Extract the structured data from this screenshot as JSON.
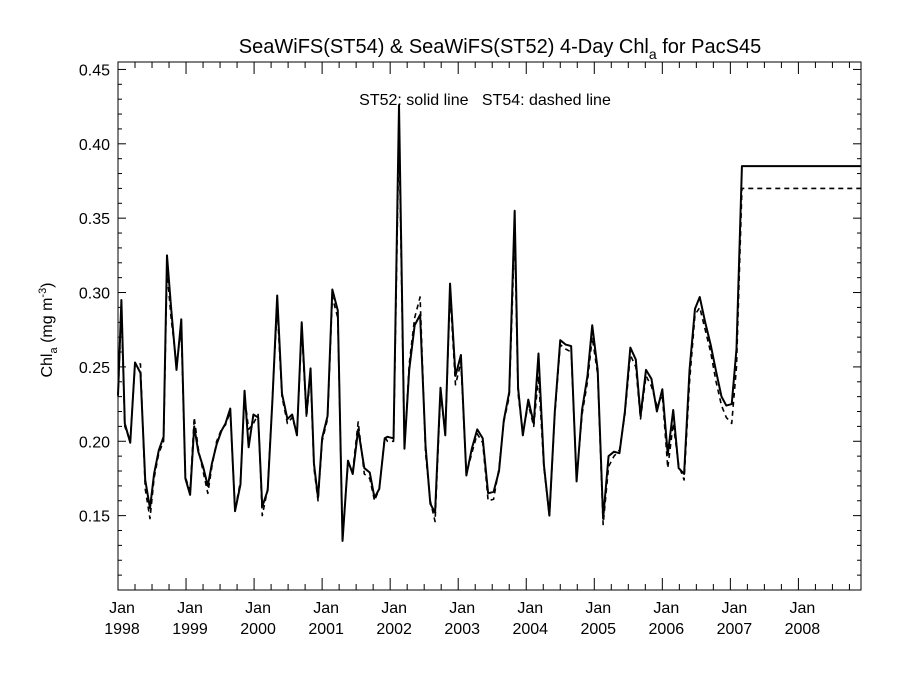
{
  "chart_data": {
    "type": "line",
    "title_main": "SeaWiFS(ST54) & SeaWiFS(ST52) 4-Day Chl",
    "title_sub": "a",
    "title_tail": " for PacS45",
    "annotation": "ST52: solid line   ST54: dashed line",
    "ylabel_main": "Chl",
    "ylabel_sub": "a",
    "ylabel_tail": " (mg m",
    "ylabel_sup": "-3",
    "ylabel_close": ")",
    "ylim": [
      0.1,
      0.455
    ],
    "xlim": [
      1998.0,
      2008.92
    ],
    "yticks": [
      0.15,
      0.2,
      0.25,
      0.3,
      0.35,
      0.4,
      0.45
    ],
    "ytick_labels": [
      "0.15",
      "0.20",
      "0.25",
      "0.30",
      "0.35",
      "0.40",
      "0.45"
    ],
    "xticks": [
      1998,
      1999,
      2000,
      2001,
      2002,
      2003,
      2004,
      2005,
      2006,
      2007,
      2008
    ],
    "xtick_month_label": "Jan",
    "xtick_year_labels": [
      "1998",
      "1999",
      "2000",
      "2001",
      "2002",
      "2003",
      "2004",
      "2005",
      "2006",
      "2007",
      "2008"
    ],
    "grid": false,
    "series": [
      {
        "name": "ST52",
        "style": "solid",
        "x": [
          1998.0,
          1998.05,
          1998.1,
          1998.18,
          1998.25,
          1998.33,
          1998.4,
          1998.47,
          1998.53,
          1998.6,
          1998.67,
          1998.72,
          1998.78,
          1998.86,
          1998.93,
          1998.99,
          1999.06,
          1999.12,
          1999.18,
          1999.25,
          1999.32,
          1999.38,
          1999.45,
          1999.52,
          1999.58,
          1999.65,
          1999.72,
          1999.8,
          1999.86,
          1999.92,
          1999.99,
          2000.06,
          2000.12,
          2000.2,
          2000.27,
          2000.34,
          2000.41,
          2000.49,
          2000.56,
          2000.63,
          2000.7,
          2000.77,
          2000.83,
          2000.88,
          2000.94,
          2001.0,
          2001.08,
          2001.15,
          2001.23,
          2001.3,
          2001.38,
          2001.45,
          2001.53,
          2001.62,
          2001.7,
          2001.77,
          2001.84,
          2001.92,
          2001.96,
          2002.05,
          2002.13,
          2002.21,
          2002.28,
          2002.36,
          2002.44,
          2002.52,
          2002.59,
          2002.66,
          2002.74,
          2002.81,
          2002.88,
          2002.96,
          2003.04,
          2003.12,
          2003.2,
          2003.28,
          2003.36,
          2003.44,
          2003.52,
          2003.6,
          2003.67,
          2003.75,
          2003.83,
          2003.88,
          2003.95,
          2004.03,
          2004.11,
          2004.18,
          2004.26,
          2004.34,
          2004.42,
          2004.5,
          2004.58,
          2004.66,
          2004.74,
          2004.82,
          2004.9,
          2004.97,
          2005.05,
          2005.13,
          2005.21,
          2005.29,
          2005.37,
          2005.45,
          2005.53,
          2005.61,
          2005.68,
          2005.76,
          2005.84,
          2005.92,
          2006.0,
          2006.08,
          2006.16,
          2006.24,
          2006.32,
          2006.4,
          2006.48,
          2006.55,
          2006.63,
          2006.71,
          2006.79,
          2006.87,
          2006.94,
          2007.02,
          2007.09,
          2007.17,
          2007.25,
          2007.33,
          2007.4,
          2007.48,
          2007.56,
          2007.64,
          2007.71,
          2007.79,
          2007.87,
          2007.95,
          2008.03,
          2008.1,
          2008.3,
          2008.5,
          2008.7,
          2008.92
        ],
        "y": [
          0.231,
          0.295,
          0.212,
          0.199,
          0.253,
          0.246,
          0.174,
          0.155,
          0.178,
          0.194,
          0.203,
          0.325,
          0.29,
          0.248,
          0.282,
          0.175,
          0.164,
          0.21,
          0.193,
          0.183,
          0.17,
          0.185,
          0.198,
          0.207,
          0.212,
          0.222,
          0.153,
          0.171,
          0.234,
          0.196,
          0.218,
          0.216,
          0.156,
          0.167,
          0.228,
          0.298,
          0.232,
          0.215,
          0.218,
          0.204,
          0.28,
          0.218,
          0.249,
          0.185,
          0.162,
          0.202,
          0.217,
          0.302,
          0.288,
          0.133,
          0.187,
          0.178,
          0.208,
          0.182,
          0.179,
          0.162,
          0.168,
          0.202,
          0.203,
          0.202,
          0.426,
          0.195,
          0.248,
          0.278,
          0.285,
          0.197,
          0.158,
          0.152,
          0.236,
          0.204,
          0.306,
          0.244,
          0.258,
          0.177,
          0.195,
          0.208,
          0.202,
          0.165,
          0.166,
          0.18,
          0.214,
          0.233,
          0.355,
          0.236,
          0.204,
          0.228,
          0.212,
          0.259,
          0.184,
          0.15,
          0.22,
          0.268,
          0.265,
          0.264,
          0.173,
          0.221,
          0.244,
          0.278,
          0.248,
          0.148,
          0.19,
          0.193,
          0.192,
          0.22,
          0.263,
          0.255,
          0.217,
          0.248,
          0.242,
          0.22,
          0.235,
          0.191,
          0.221,
          0.182,
          0.178,
          0.248,
          0.289,
          0.297,
          0.28,
          0.265,
          0.247,
          0.23,
          0.224,
          0.225,
          0.262,
          0.385,
          0.385,
          0.385,
          0.385,
          0.385,
          0.385,
          0.385,
          0.385,
          0.385,
          0.385,
          0.385,
          0.385,
          0.385,
          0.385,
          0.385,
          0.385,
          0.385
        ]
      },
      {
        "name": "ST54",
        "style": "dashed",
        "x": [
          1998.0,
          1998.05,
          1998.1,
          1998.18,
          1998.25,
          1998.33,
          1998.4,
          1998.47,
          1998.53,
          1998.6,
          1998.67,
          1998.72,
          1998.78,
          1998.86,
          1998.93,
          1998.99,
          1999.06,
          1999.12,
          1999.18,
          1999.25,
          1999.32,
          1999.38,
          1999.45,
          1999.52,
          1999.58,
          1999.65,
          1999.72,
          1999.8,
          1999.86,
          1999.92,
          1999.99,
          2000.06,
          2000.12,
          2000.2,
          2000.27,
          2000.34,
          2000.41,
          2000.49,
          2000.56,
          2000.63,
          2000.7,
          2000.77,
          2000.83,
          2000.88,
          2000.94,
          2001.0,
          2001.08,
          2001.15,
          2001.23,
          2001.3,
          2001.38,
          2001.45,
          2001.53,
          2001.62,
          2001.7,
          2001.77,
          2001.84,
          2001.92,
          2001.96,
          2002.05,
          2002.13,
          2002.21,
          2002.28,
          2002.36,
          2002.44,
          2002.52,
          2002.59,
          2002.66,
          2002.74,
          2002.81,
          2002.88,
          2002.96,
          2003.04,
          2003.12,
          2003.2,
          2003.28,
          2003.36,
          2003.44,
          2003.52,
          2003.6,
          2003.67,
          2003.75,
          2003.83,
          2003.88,
          2003.95,
          2004.03,
          2004.11,
          2004.18,
          2004.26,
          2004.34,
          2004.42,
          2004.5,
          2004.58,
          2004.66,
          2004.74,
          2004.82,
          2004.9,
          2004.97,
          2005.05,
          2005.13,
          2005.21,
          2005.29,
          2005.37,
          2005.45,
          2005.53,
          2005.61,
          2005.68,
          2005.76,
          2005.84,
          2005.92,
          2006.0,
          2006.08,
          2006.16,
          2006.24,
          2006.32,
          2006.4,
          2006.48,
          2006.55,
          2006.63,
          2006.71,
          2006.79,
          2006.87,
          2006.94,
          2007.02,
          2007.09,
          2007.17,
          2007.25,
          2007.33,
          2007.4,
          2007.48,
          2007.56,
          2007.64,
          2007.71,
          2007.79,
          2007.87,
          2007.95,
          2008.03,
          2008.1,
          2008.3,
          2008.5,
          2008.7,
          2008.92
        ],
        "y": [
          0.23,
          0.29,
          0.21,
          0.2,
          0.252,
          0.252,
          0.168,
          0.148,
          0.175,
          0.192,
          0.2,
          0.315,
          0.283,
          0.252,
          0.275,
          0.176,
          0.166,
          0.216,
          0.195,
          0.18,
          0.165,
          0.183,
          0.2,
          0.208,
          0.211,
          0.22,
          0.154,
          0.173,
          0.23,
          0.208,
          0.212,
          0.218,
          0.15,
          0.168,
          0.23,
          0.29,
          0.23,
          0.212,
          0.216,
          0.205,
          0.275,
          0.216,
          0.245,
          0.182,
          0.16,
          0.2,
          0.215,
          0.297,
          0.283,
          0.136,
          0.185,
          0.18,
          0.213,
          0.178,
          0.175,
          0.16,
          0.168,
          0.203,
          0.2,
          0.2,
          0.408,
          0.196,
          0.252,
          0.283,
          0.297,
          0.192,
          0.16,
          0.146,
          0.233,
          0.205,
          0.3,
          0.238,
          0.253,
          0.178,
          0.192,
          0.205,
          0.199,
          0.16,
          0.161,
          0.182,
          0.213,
          0.23,
          0.34,
          0.232,
          0.206,
          0.225,
          0.21,
          0.244,
          0.182,
          0.15,
          0.218,
          0.265,
          0.262,
          0.26,
          0.175,
          0.218,
          0.24,
          0.27,
          0.245,
          0.144,
          0.183,
          0.19,
          0.194,
          0.218,
          0.258,
          0.25,
          0.215,
          0.244,
          0.237,
          0.224,
          0.231,
          0.182,
          0.212,
          0.184,
          0.174,
          0.24,
          0.285,
          0.29,
          0.275,
          0.26,
          0.24,
          0.224,
          0.216,
          0.212,
          0.25,
          0.37,
          0.37,
          0.37,
          0.37,
          0.37,
          0.37,
          0.37,
          0.37,
          0.37,
          0.37,
          0.37,
          0.37,
          0.37,
          0.37,
          0.37,
          0.37,
          0.37
        ]
      }
    ]
  }
}
